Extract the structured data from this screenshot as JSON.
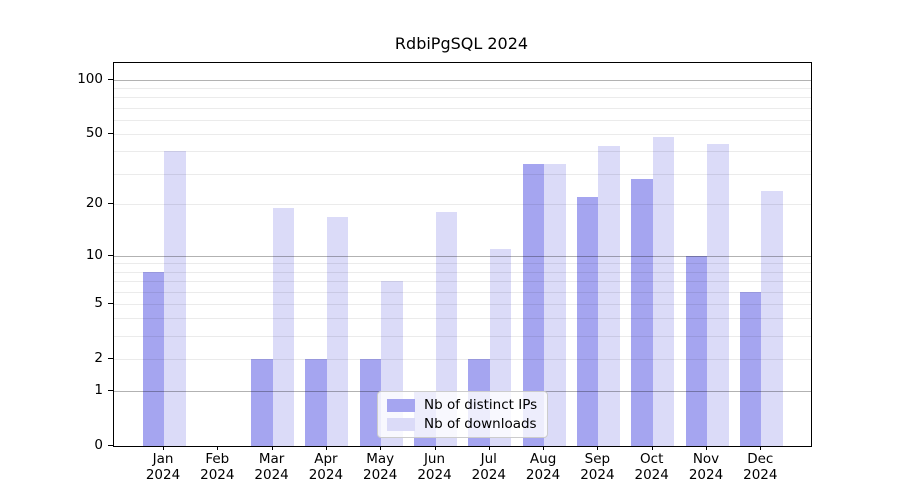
{
  "title": "RdbiPgSQL 2024",
  "chart_data": {
    "type": "bar",
    "title": "RdbiPgSQL 2024",
    "year": "2024",
    "months": [
      "Jan",
      "Feb",
      "Mar",
      "Apr",
      "May",
      "Jun",
      "Jul",
      "Aug",
      "Sep",
      "Oct",
      "Nov",
      "Dec"
    ],
    "series": [
      {
        "name": "Nb of distinct IPs",
        "color": "#a5a5f0",
        "values": [
          8,
          0,
          2,
          2,
          2,
          1,
          2,
          34,
          22,
          28,
          10,
          6
        ]
      },
      {
        "name": "Nb of downloads",
        "color": "#dbdbf8",
        "values": [
          40,
          0,
          19,
          17,
          7,
          18,
          11,
          34,
          43,
          48,
          44,
          24
        ]
      }
    ],
    "y_axis": {
      "scale": "log1p",
      "tick_labels": [
        0,
        1,
        2,
        5,
        10,
        20,
        50,
        100
      ],
      "major_gridlines": [
        1,
        10,
        100
      ],
      "minor_gridlines": [
        2,
        3,
        4,
        5,
        6,
        7,
        8,
        9,
        20,
        30,
        40,
        50,
        60,
        70,
        80,
        90
      ],
      "ylim_top": 123
    },
    "legend": {
      "position": "lower center",
      "items": [
        "Nb of distinct IPs",
        "Nb of downloads"
      ]
    },
    "grid": true
  },
  "colors": {
    "background": "#ffffff",
    "spine": "#000000",
    "major_grid": "rgba(0,0,0,0.30)",
    "minor_grid": "rgba(0,0,0,0.08)",
    "legend_border": "#cccccc"
  }
}
